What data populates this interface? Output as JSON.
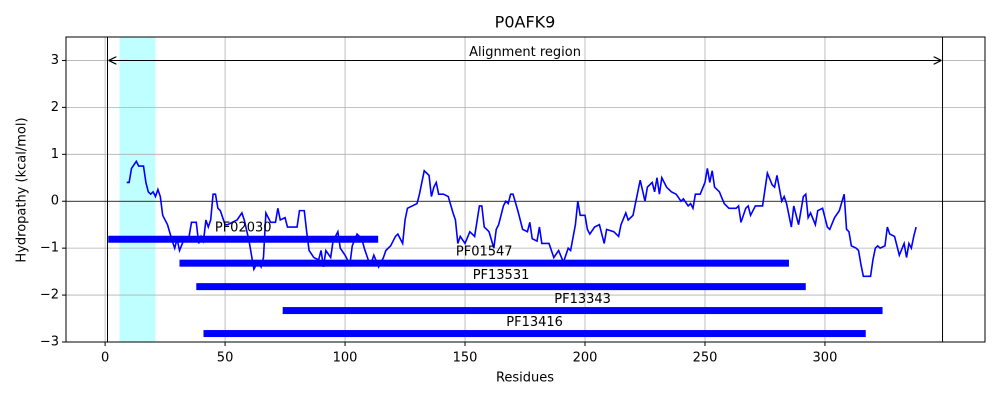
{
  "chart_data": {
    "type": "line",
    "title": "P0AFK9",
    "x_label": "Residues",
    "y_label": "Hydropathy (kcal/mol)",
    "color": "#0000ff",
    "grid": true,
    "xlim": [
      -16.3,
      366.7
    ],
    "ylim": [
      -3,
      3.5
    ],
    "xticks": [
      0,
      50,
      100,
      150,
      200,
      250,
      300
    ],
    "yticks": [
      {
        "value": -3,
        "label": "−3"
      },
      {
        "value": -2,
        "label": "−2"
      },
      {
        "value": -1,
        "label": "−1"
      },
      0,
      1,
      2,
      3
    ],
    "x": [
      9,
      10,
      11,
      13,
      14,
      16,
      17,
      18,
      19,
      20,
      21,
      22,
      23,
      24,
      26,
      28,
      29,
      30,
      31,
      33,
      35,
      36,
      38,
      39,
      40,
      41,
      42,
      43,
      44,
      45,
      46,
      47,
      48,
      50,
      51,
      53,
      55,
      57,
      58,
      60,
      62,
      63,
      64,
      65,
      66,
      67,
      69,
      71,
      72,
      73,
      75,
      76,
      80,
      81,
      83,
      84,
      85,
      87,
      89,
      90,
      91,
      92,
      94,
      95,
      97,
      98,
      100,
      102,
      103,
      105,
      107,
      108,
      110,
      111,
      112,
      114,
      116,
      117,
      119,
      121,
      122,
      124,
      125,
      126,
      128,
      130,
      131,
      133,
      135,
      136,
      137,
      138,
      139,
      141,
      143,
      145,
      146,
      147,
      148,
      150,
      152,
      154,
      156,
      157,
      158,
      160,
      162,
      163,
      164,
      166,
      167,
      168,
      169,
      170,
      172,
      174,
      176,
      177,
      178,
      180,
      181,
      182,
      185,
      187,
      189,
      191,
      193,
      194,
      196,
      197,
      198,
      200,
      201,
      202,
      204,
      206,
      208,
      209,
      212,
      214,
      215,
      217,
      218,
      220,
      222,
      223,
      225,
      226,
      228,
      229,
      230,
      231,
      232,
      234,
      236,
      238,
      240,
      241,
      243,
      244,
      245,
      246,
      248,
      250,
      251,
      252,
      253,
      254,
      256,
      258,
      260,
      263,
      264,
      265,
      267,
      268,
      269,
      271,
      274,
      276,
      278,
      279,
      280,
      282,
      283,
      284,
      286,
      287,
      289,
      291,
      292,
      293,
      294,
      296,
      297,
      299,
      301,
      302,
      304,
      306,
      308,
      309,
      310,
      311,
      313,
      314,
      315,
      316,
      318,
      319,
      320,
      321,
      322,
      323,
      325,
      326,
      327,
      329,
      331,
      333,
      334,
      335,
      336,
      337,
      338
    ],
    "values": [
      0.4,
      0.4,
      0.7,
      0.85,
      0.75,
      0.75,
      0.4,
      0.2,
      0.15,
      0.2,
      0.1,
      0.25,
      0.1,
      -0.3,
      -0.5,
      -0.85,
      -1.0,
      -0.8,
      -1.05,
      -0.8,
      -0.75,
      -0.45,
      -0.45,
      -0.9,
      -0.75,
      -0.85,
      -0.4,
      -0.55,
      -0.4,
      0.15,
      0.15,
      -0.15,
      -0.2,
      -0.5,
      -0.5,
      -0.45,
      -0.4,
      -0.25,
      -0.4,
      -0.85,
      -1.45,
      -1.35,
      -1.3,
      -1.4,
      -1.2,
      -0.25,
      -0.45,
      -0.45,
      -0.15,
      -0.4,
      -0.35,
      -0.55,
      -0.55,
      -0.2,
      -0.2,
      -0.65,
      -1.05,
      -1.2,
      -1.25,
      -1.05,
      -1.4,
      -1.05,
      -1.2,
      -0.85,
      -0.65,
      -1.0,
      -1.15,
      -1.35,
      -0.95,
      -0.7,
      -0.8,
      -1.0,
      -1.3,
      -1.3,
      -1.15,
      -1.4,
      -1.2,
      -1.05,
      -0.95,
      -0.75,
      -0.7,
      -0.9,
      -0.4,
      -0.15,
      -0.1,
      -0.05,
      0.15,
      0.65,
      0.55,
      0.1,
      0.3,
      0.4,
      0.15,
      0.15,
      0.1,
      -0.25,
      -0.4,
      -0.9,
      -0.75,
      -0.9,
      -0.65,
      -0.75,
      -0.1,
      -0.1,
      -0.55,
      -0.65,
      -1.0,
      -0.6,
      -0.5,
      -0.1,
      0.0,
      -0.05,
      0.15,
      0.15,
      -0.2,
      -0.6,
      -0.65,
      -0.45,
      -0.8,
      -0.85,
      -0.55,
      -0.9,
      -0.9,
      -1.2,
      -1.05,
      -1.3,
      -1.0,
      -1.05,
      -0.5,
      0.0,
      -0.3,
      -0.3,
      -0.6,
      -0.7,
      -0.55,
      -0.5,
      -0.9,
      -0.6,
      -0.65,
      -0.75,
      -0.5,
      -0.25,
      -0.4,
      -0.3,
      0.2,
      0.45,
      0.0,
      0.3,
      0.4,
      0.2,
      0.5,
      0.15,
      0.5,
      0.3,
      0.2,
      0.15,
      0.0,
      0.05,
      -0.1,
      -0.05,
      -0.15,
      0.15,
      0.15,
      0.4,
      0.7,
      0.4,
      0.65,
      0.3,
      0.2,
      -0.05,
      -0.15,
      -0.15,
      -0.1,
      -0.45,
      -0.15,
      -0.1,
      -0.3,
      -0.1,
      -0.1,
      0.6,
      0.35,
      0.3,
      0.55,
      0.0,
      0.1,
      -0.05,
      -0.55,
      -0.1,
      -0.5,
      0.1,
      0.15,
      -0.35,
      -0.25,
      -0.5,
      -0.2,
      -0.15,
      -0.55,
      -0.6,
      -0.35,
      -0.2,
      0.15,
      -0.6,
      -0.65,
      -0.95,
      -1.0,
      -1.05,
      -1.35,
      -1.6,
      -1.6,
      -1.6,
      -1.25,
      -1.0,
      -0.95,
      -1.0,
      -0.95,
      -0.55,
      -0.7,
      -0.75,
      -1.15,
      -0.9,
      -1.2,
      -0.9,
      -1.0,
      -0.75,
      -0.55
    ],
    "highlight": {
      "start": 6,
      "end": 21,
      "color": "#bfffff"
    },
    "alignment_region": {
      "label": "Alignment region",
      "start": 1,
      "end": 349,
      "y": 3
    },
    "domains": [
      {
        "label": "PF02030",
        "start": 1.3,
        "end": 113.8,
        "y": -0.81
      },
      {
        "label": "PF01547",
        "start": 31,
        "end": 285,
        "y": -1.32
      },
      {
        "label": "PF13531",
        "start": 38,
        "end": 292,
        "y": -1.82
      },
      {
        "label": "PF13343",
        "start": 74,
        "end": 324,
        "y": -2.33
      },
      {
        "label": "PF13416",
        "start": 41,
        "end": 317,
        "y": -2.82
      }
    ]
  }
}
